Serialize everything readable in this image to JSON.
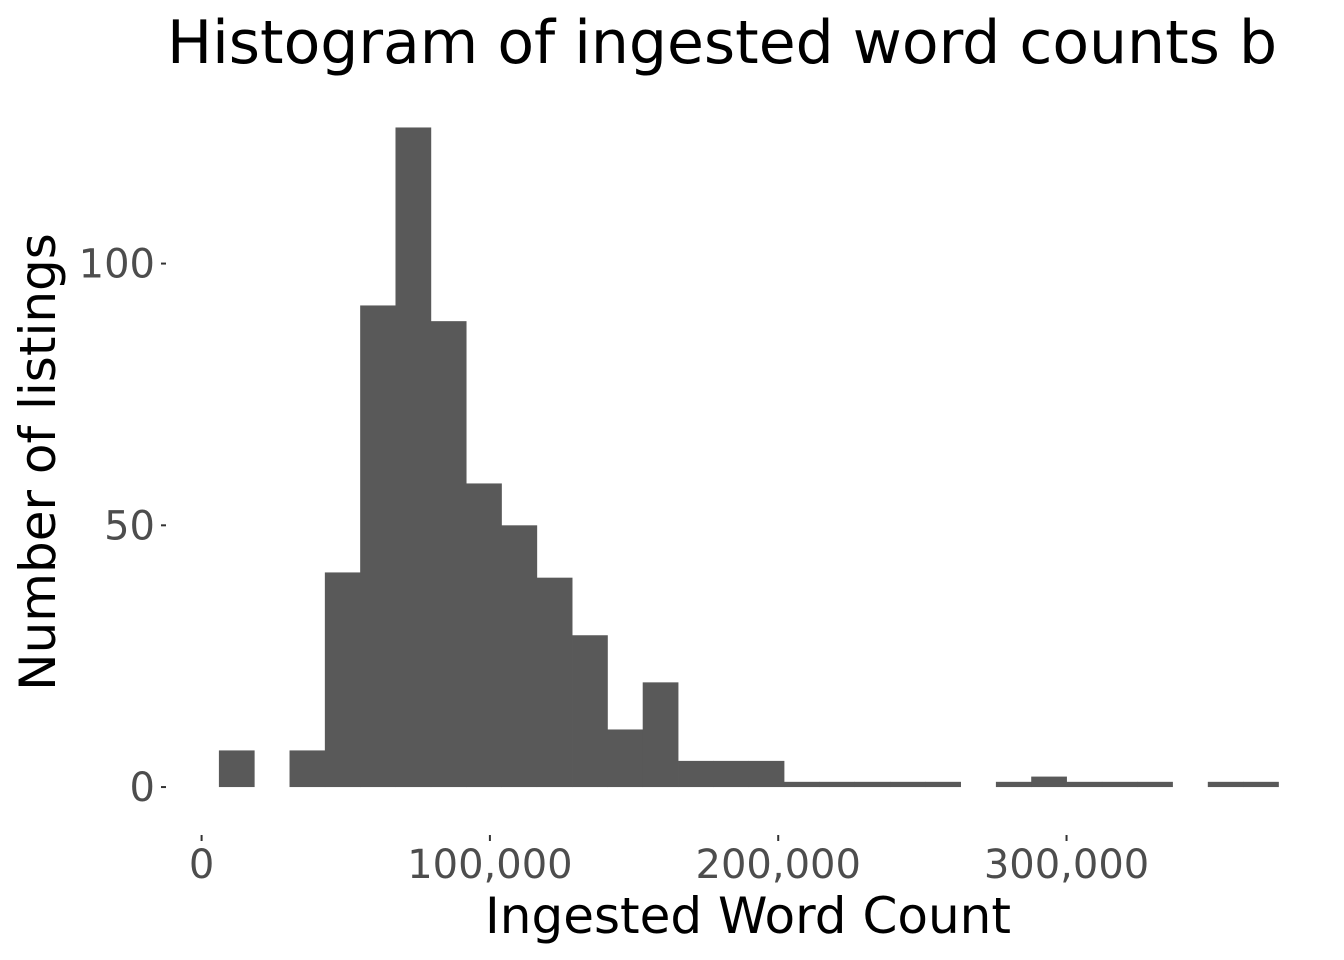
{
  "chart_data": {
    "type": "bar",
    "title": "Histogram of ingested word counts b",
    "xlabel": "Ingested Word Count",
    "ylabel": "Number of listings",
    "xlim": [
      -12000,
      373000
    ],
    "ylim": [
      -4,
      128
    ],
    "x_ticks": [
      {
        "value": 0,
        "label": "0"
      },
      {
        "value": 100000,
        "label": "100,000"
      },
      {
        "value": 200000,
        "label": "200,000"
      },
      {
        "value": 300000,
        "label": "300,000"
      }
    ],
    "y_ticks": [
      {
        "value": 0,
        "label": "0"
      },
      {
        "value": 50,
        "label": "50"
      },
      {
        "value": 100,
        "label": "100"
      }
    ],
    "grid": false,
    "bins": [
      {
        "x0": 6000,
        "x1": 18250,
        "count": 7
      },
      {
        "x0": 30500,
        "x1": 42750,
        "count": 7
      },
      {
        "x0": 42750,
        "x1": 55000,
        "count": 41
      },
      {
        "x0": 55000,
        "x1": 67250,
        "count": 92
      },
      {
        "x0": 67250,
        "x1": 79500,
        "count": 126
      },
      {
        "x0": 79500,
        "x1": 91750,
        "count": 89
      },
      {
        "x0": 91750,
        "x1": 104000,
        "count": 58
      },
      {
        "x0": 104000,
        "x1": 116250,
        "count": 50
      },
      {
        "x0": 116250,
        "x1": 128500,
        "count": 40
      },
      {
        "x0": 128500,
        "x1": 140750,
        "count": 29
      },
      {
        "x0": 140750,
        "x1": 153000,
        "count": 11
      },
      {
        "x0": 153000,
        "x1": 165250,
        "count": 20
      },
      {
        "x0": 165250,
        "x1": 177500,
        "count": 5
      },
      {
        "x0": 177500,
        "x1": 189750,
        "count": 5
      },
      {
        "x0": 189750,
        "x1": 202000,
        "count": 5
      },
      {
        "x0": 202000,
        "x1": 214250,
        "count": 1
      },
      {
        "x0": 214250,
        "x1": 226500,
        "count": 1
      },
      {
        "x0": 226500,
        "x1": 238750,
        "count": 1
      },
      {
        "x0": 238750,
        "x1": 251000,
        "count": 1
      },
      {
        "x0": 251000,
        "x1": 263250,
        "count": 1
      },
      {
        "x0": 275500,
        "x1": 287750,
        "count": 1
      },
      {
        "x0": 287750,
        "x1": 300000,
        "count": 2
      },
      {
        "x0": 300000,
        "x1": 312250,
        "count": 1
      },
      {
        "x0": 312250,
        "x1": 324500,
        "count": 1
      },
      {
        "x0": 324500,
        "x1": 336750,
        "count": 1
      },
      {
        "x0": 349000,
        "x1": 361250,
        "count": 1
      },
      {
        "x0": 361250,
        "x1": 373500,
        "count": 1
      }
    ],
    "bar_color": "#595959"
  }
}
